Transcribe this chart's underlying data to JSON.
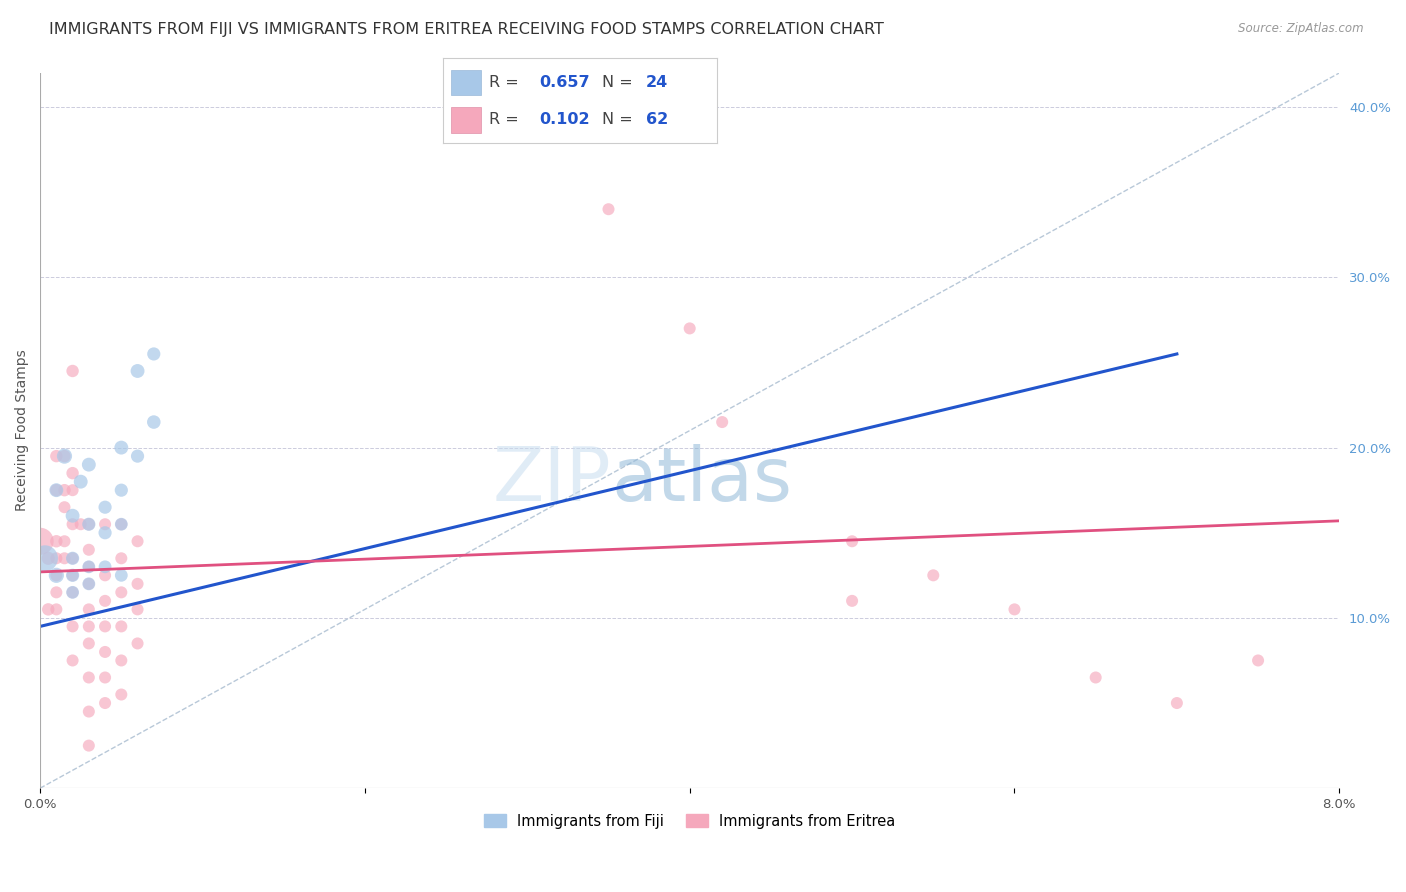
{
  "title": "IMMIGRANTS FROM FIJI VS IMMIGRANTS FROM ERITREA RECEIVING FOOD STAMPS CORRELATION CHART",
  "source": "Source: ZipAtlas.com",
  "ylabel": "Receiving Food Stamps",
  "watermark_part1": "ZIP",
  "watermark_part2": "atlas",
  "fiji_R": "0.657",
  "fiji_N": "24",
  "eritrea_R": "0.102",
  "eritrea_N": "62",
  "fiji_color": "#a8c8e8",
  "eritrea_color": "#f5a8bc",
  "fiji_line_color": "#2255cc",
  "eritrea_line_color": "#e05080",
  "ref_line_color": "#b8c8d8",
  "grid_color": "#ccccdd",
  "background_color": "#ffffff",
  "xlim": [
    0.0,
    0.08
  ],
  "ylim": [
    0.0,
    0.42
  ],
  "x_ticks": [
    0.0,
    0.02,
    0.04,
    0.06,
    0.08
  ],
  "x_tick_labels": [
    "0.0%",
    "",
    "",
    "",
    "8.0%"
  ],
  "y_ticks_right": [
    0.1,
    0.2,
    0.3,
    0.4
  ],
  "y_tick_labels_right": [
    "10.0%",
    "20.0%",
    "30.0%",
    "40.0%"
  ],
  "fiji_points": [
    [
      0.0003,
      0.135,
      350
    ],
    [
      0.001,
      0.125,
      120
    ],
    [
      0.001,
      0.175,
      100
    ],
    [
      0.0015,
      0.195,
      120
    ],
    [
      0.002,
      0.16,
      100
    ],
    [
      0.002,
      0.135,
      90
    ],
    [
      0.002,
      0.125,
      90
    ],
    [
      0.002,
      0.115,
      85
    ],
    [
      0.0025,
      0.18,
      100
    ],
    [
      0.003,
      0.19,
      100
    ],
    [
      0.003,
      0.155,
      90
    ],
    [
      0.003,
      0.13,
      85
    ],
    [
      0.003,
      0.12,
      85
    ],
    [
      0.004,
      0.165,
      90
    ],
    [
      0.004,
      0.15,
      90
    ],
    [
      0.004,
      0.13,
      85
    ],
    [
      0.005,
      0.2,
      100
    ],
    [
      0.005,
      0.175,
      90
    ],
    [
      0.005,
      0.155,
      85
    ],
    [
      0.005,
      0.125,
      85
    ],
    [
      0.006,
      0.245,
      100
    ],
    [
      0.006,
      0.195,
      90
    ],
    [
      0.007,
      0.255,
      90
    ],
    [
      0.007,
      0.215,
      95
    ]
  ],
  "eritrea_points": [
    [
      0.0,
      0.145,
      380
    ],
    [
      0.0005,
      0.135,
      90
    ],
    [
      0.0005,
      0.105,
      80
    ],
    [
      0.001,
      0.195,
      80
    ],
    [
      0.001,
      0.175,
      80
    ],
    [
      0.001,
      0.145,
      80
    ],
    [
      0.001,
      0.135,
      75
    ],
    [
      0.001,
      0.125,
      75
    ],
    [
      0.001,
      0.115,
      75
    ],
    [
      0.001,
      0.105,
      75
    ],
    [
      0.0015,
      0.195,
      80
    ],
    [
      0.0015,
      0.175,
      80
    ],
    [
      0.0015,
      0.165,
      75
    ],
    [
      0.0015,
      0.145,
      75
    ],
    [
      0.0015,
      0.135,
      75
    ],
    [
      0.002,
      0.245,
      80
    ],
    [
      0.002,
      0.185,
      80
    ],
    [
      0.002,
      0.175,
      75
    ],
    [
      0.002,
      0.155,
      75
    ],
    [
      0.002,
      0.135,
      75
    ],
    [
      0.002,
      0.125,
      75
    ],
    [
      0.002,
      0.115,
      75
    ],
    [
      0.002,
      0.095,
      75
    ],
    [
      0.002,
      0.075,
      75
    ],
    [
      0.0025,
      0.155,
      75
    ],
    [
      0.003,
      0.155,
      80
    ],
    [
      0.003,
      0.14,
      75
    ],
    [
      0.003,
      0.13,
      75
    ],
    [
      0.003,
      0.12,
      75
    ],
    [
      0.003,
      0.105,
      75
    ],
    [
      0.003,
      0.095,
      75
    ],
    [
      0.003,
      0.085,
      75
    ],
    [
      0.003,
      0.065,
      75
    ],
    [
      0.003,
      0.045,
      75
    ],
    [
      0.003,
      0.025,
      75
    ],
    [
      0.004,
      0.155,
      75
    ],
    [
      0.004,
      0.125,
      75
    ],
    [
      0.004,
      0.11,
      75
    ],
    [
      0.004,
      0.095,
      75
    ],
    [
      0.004,
      0.08,
      75
    ],
    [
      0.004,
      0.065,
      75
    ],
    [
      0.004,
      0.05,
      75
    ],
    [
      0.005,
      0.155,
      75
    ],
    [
      0.005,
      0.135,
      75
    ],
    [
      0.005,
      0.115,
      75
    ],
    [
      0.005,
      0.095,
      75
    ],
    [
      0.005,
      0.075,
      75
    ],
    [
      0.005,
      0.055,
      75
    ],
    [
      0.006,
      0.145,
      75
    ],
    [
      0.006,
      0.12,
      75
    ],
    [
      0.006,
      0.105,
      75
    ],
    [
      0.006,
      0.085,
      75
    ],
    [
      0.035,
      0.34,
      75
    ],
    [
      0.04,
      0.27,
      75
    ],
    [
      0.042,
      0.215,
      75
    ],
    [
      0.05,
      0.145,
      75
    ],
    [
      0.05,
      0.11,
      75
    ],
    [
      0.055,
      0.125,
      75
    ],
    [
      0.06,
      0.105,
      75
    ],
    [
      0.065,
      0.065,
      75
    ],
    [
      0.07,
      0.05,
      75
    ],
    [
      0.075,
      0.075,
      75
    ]
  ],
  "fiji_line_x": [
    0.0,
    0.07
  ],
  "fiji_line_y": [
    0.095,
    0.255
  ],
  "eritrea_line_x": [
    0.0,
    0.08
  ],
  "eritrea_line_y": [
    0.127,
    0.157
  ],
  "ref_line_x": [
    0.0,
    0.08
  ],
  "ref_line_y": [
    0.0,
    0.42
  ],
  "title_fontsize": 11.5,
  "axis_label_fontsize": 10,
  "tick_fontsize": 9.5,
  "legend_fontsize": 12
}
